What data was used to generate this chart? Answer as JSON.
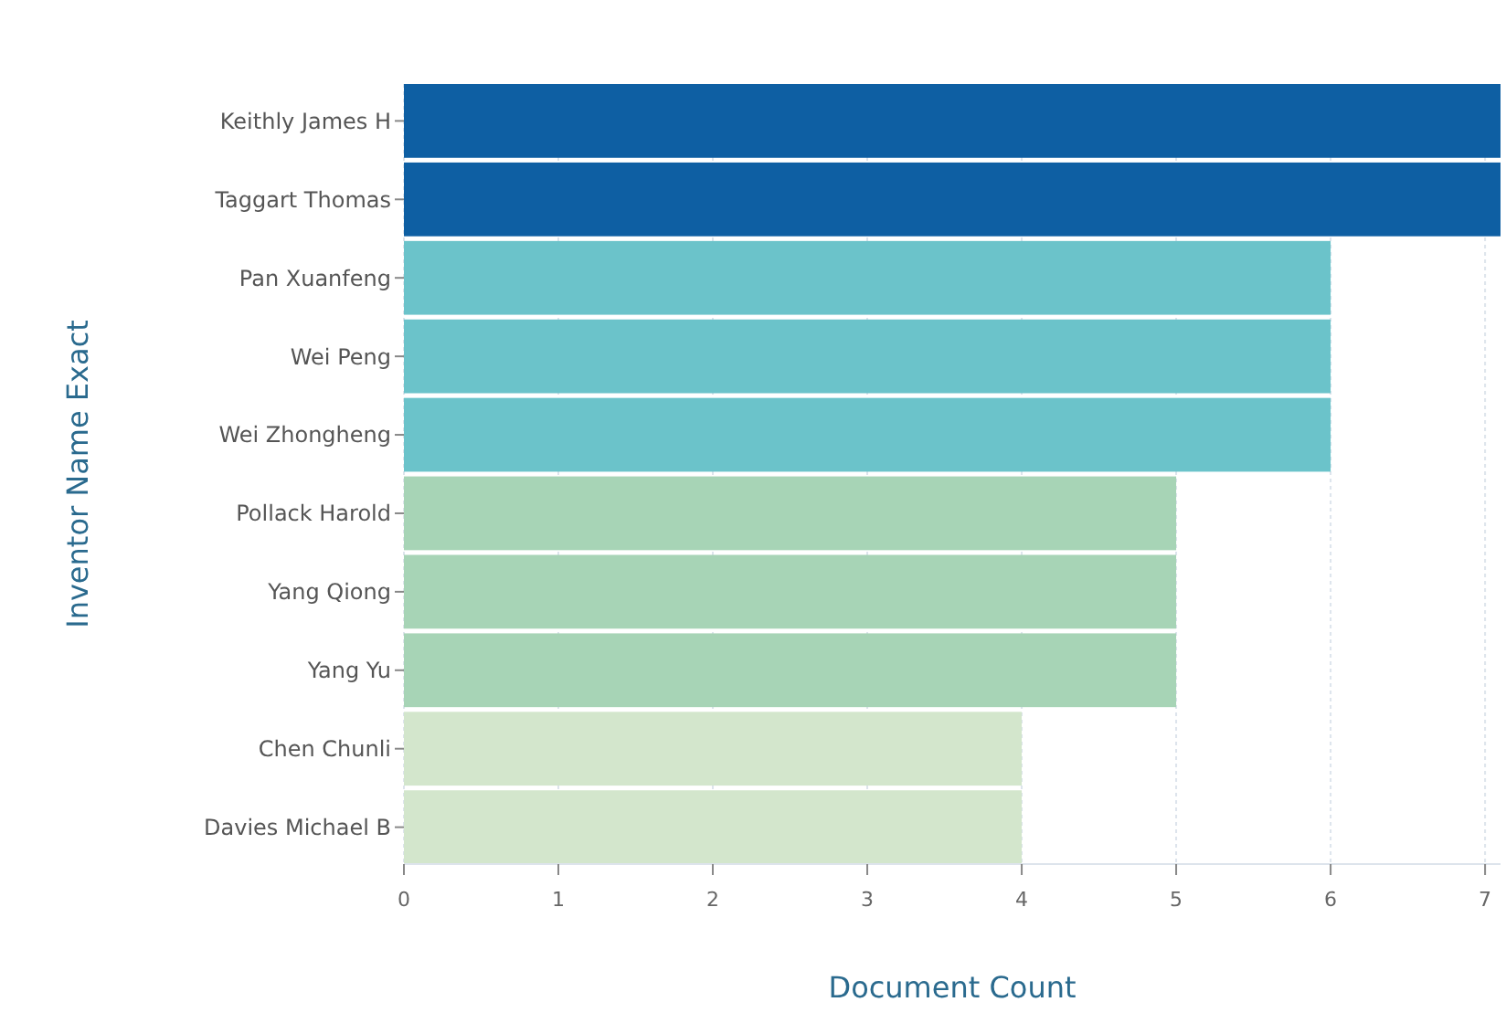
{
  "chart_data": {
    "type": "bar",
    "orientation": "horizontal",
    "xlabel": "Document Count",
    "ylabel": "Inventor Name Exact",
    "categories": [
      "Keithly James H",
      "Taggart Thomas",
      "Pan Xuanfeng",
      "Wei Peng",
      "Wei Zhongheng",
      "Pollack Harold",
      "Yang Qiong",
      "Yang Yu",
      "Chen Chunli",
      "Davies Michael B"
    ],
    "values": [
      7.1,
      7.1,
      6,
      6,
      6,
      5,
      5,
      5,
      4,
      4
    ],
    "colors": [
      "#0e5fa3",
      "#0e5fa3",
      "#6bc3ca",
      "#6bc3ca",
      "#6bc3ca",
      "#a7d4b6",
      "#a7d4b6",
      "#a7d4b6",
      "#d3e6cc",
      "#d3e6cc"
    ],
    "xlim": [
      0,
      7.1
    ],
    "xticks": [
      0,
      1,
      2,
      3,
      4,
      5,
      6,
      7
    ],
    "grid": "x"
  }
}
